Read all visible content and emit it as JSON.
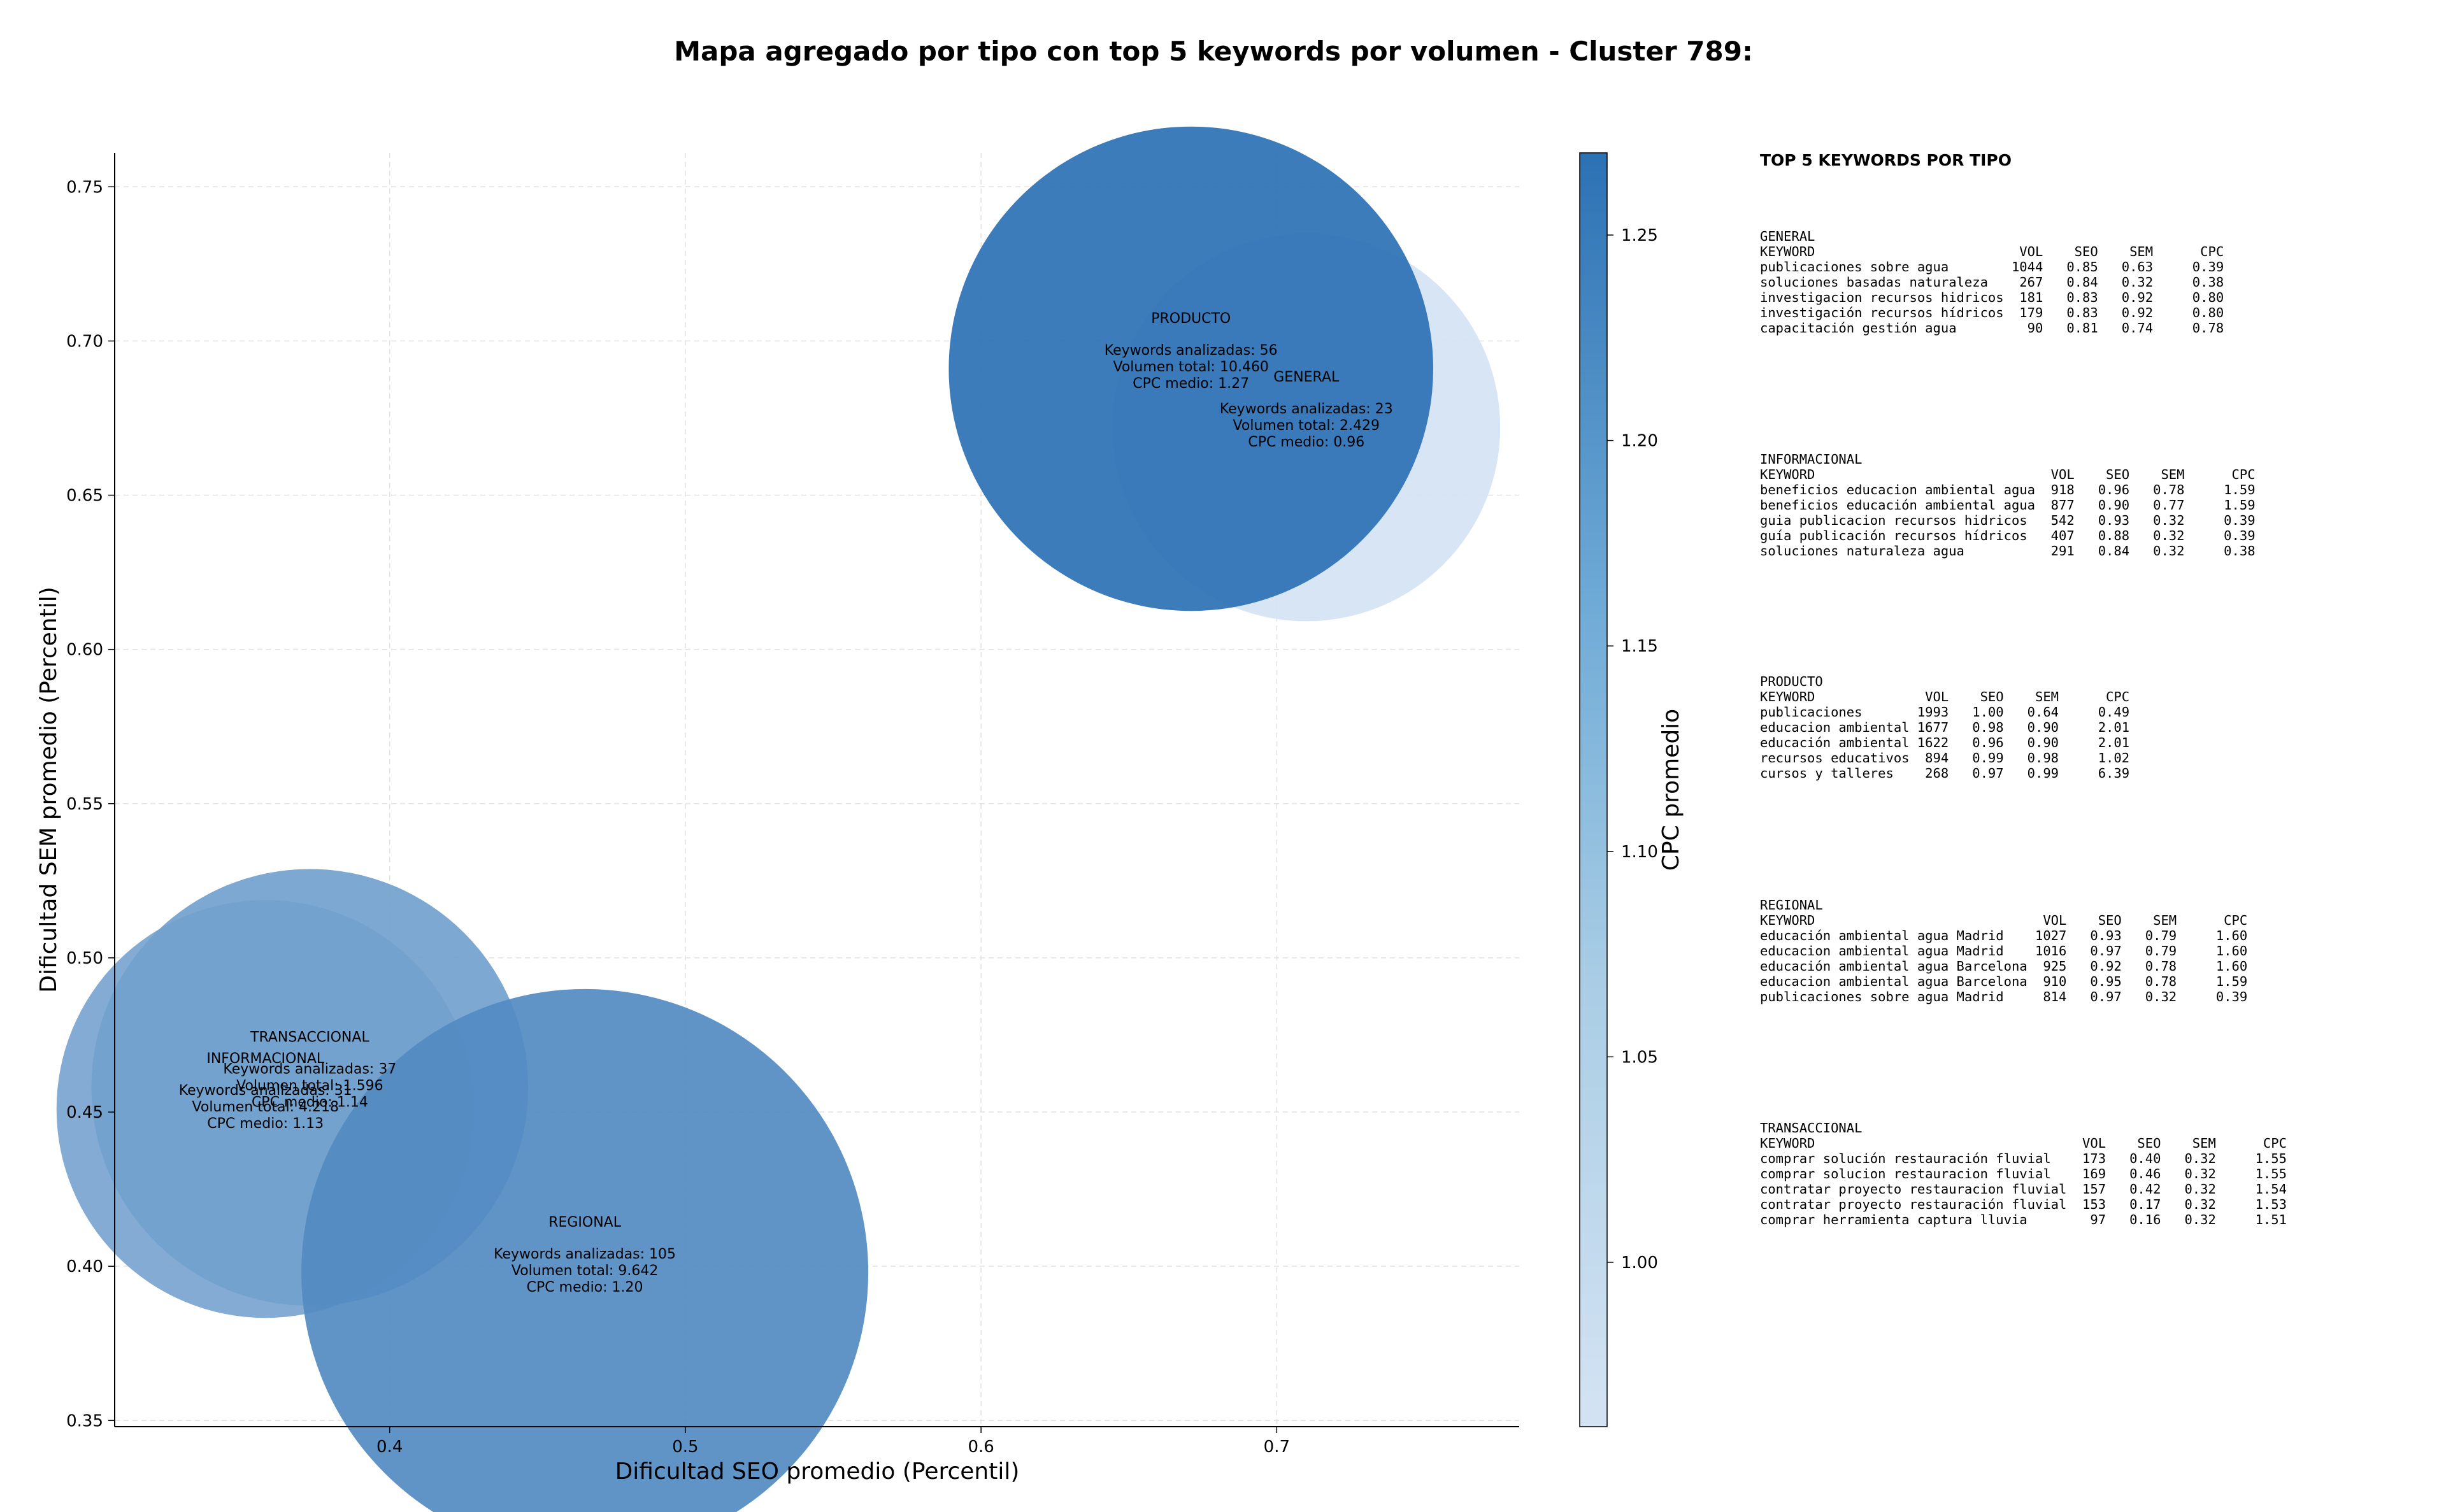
{
  "chart_data": {
    "type": "scatter",
    "title": "Mapa agregado por tipo con top 5 keywords por volumen - Cluster 789:",
    "xlabel": "Dificultad SEO promedio (Percentil)",
    "ylabel": "Dificultad SEM promedio (Percentil)",
    "xlim": [
      0.307,
      0.782
    ],
    "ylim": [
      0.348,
      0.761
    ],
    "xticks": [
      "0.4",
      "0.5",
      "0.6",
      "0.7"
    ],
    "yticks": [
      "0.35",
      "0.40",
      "0.45",
      "0.50",
      "0.55",
      "0.60",
      "0.65",
      "0.70",
      "0.75"
    ],
    "grid": true,
    "colorbar": {
      "label": "CPC promedio",
      "range": [
        0.96,
        1.27
      ],
      "ticks": [
        "1.00",
        "1.05",
        "1.10",
        "1.15",
        "1.20",
        "1.25"
      ],
      "colors": [
        "#d4e3f3",
        "#2c71b4"
      ]
    },
    "points": [
      {
        "label": "GENERAL",
        "x": 0.71,
        "y": 0.672,
        "keywords": 23,
        "volume": 2429,
        "line_keywords": "Keywords analizadas: 23",
        "line_volume": "Volumen total: 2.429",
        "line_cpc": "CPC medio: 0.96",
        "cpc": 0.96
      },
      {
        "label": "PRODUCTO",
        "x": 0.671,
        "y": 0.691,
        "keywords": 56,
        "volume": 10460,
        "line_keywords": "Keywords analizadas: 56",
        "line_volume": "Volumen total: 10.460",
        "line_cpc": "CPC medio: 1.27",
        "cpc": 1.27
      },
      {
        "label": "INFORMACIONAL",
        "x": 0.358,
        "y": 0.451,
        "keywords": 31,
        "volume": 4218,
        "line_keywords": "Keywords analizadas: 31",
        "line_volume": "Volumen total: 4.218",
        "line_cpc": "CPC medio: 1.13",
        "cpc": 1.13
      },
      {
        "label": "TRANSACCIONAL",
        "x": 0.373,
        "y": 0.458,
        "keywords": 37,
        "volume": 1596,
        "line_keywords": "Keywords analizadas: 37",
        "line_volume": "Volumen total: 1.596",
        "line_cpc": "CPC medio: 1.14",
        "cpc": 1.14
      },
      {
        "label": "REGIONAL",
        "x": 0.466,
        "y": 0.398,
        "keywords": 105,
        "volume": 9642,
        "line_keywords": "Keywords analizadas: 105",
        "line_volume": "Volumen total: 9.642",
        "line_cpc": "CPC medio: 1.20",
        "cpc": 1.2
      }
    ],
    "side_panel": {
      "title": "TOP 5 KEYWORDS POR TIPO",
      "groups": [
        {
          "name": "GENERAL",
          "header": "KEYWORD                          VOL    SEO    SEM      CPC",
          "rows": [
            "publicaciones sobre agua        1044   0.85   0.63     0.39",
            "soluciones basadas naturaleza    267   0.84   0.32     0.38",
            "investigacion recursos hidricos  181   0.83   0.92     0.80",
            "investigación recursos hídricos  179   0.83   0.92     0.80",
            "capacitación gestión agua         90   0.81   0.74     0.78"
          ]
        },
        {
          "name": "INFORMACIONAL",
          "header": "KEYWORD                              VOL    SEO    SEM      CPC",
          "rows": [
            "beneficios educacion ambiental agua  918   0.96   0.78     1.59",
            "beneficios educación ambiental agua  877   0.90   0.77     1.59",
            "guia publicacion recursos hidricos   542   0.93   0.32     0.39",
            "guía publicación recursos hídricos   407   0.88   0.32     0.39",
            "soluciones naturaleza agua           291   0.84   0.32     0.38"
          ]
        },
        {
          "name": "PRODUCTO",
          "header": "KEYWORD              VOL    SEO    SEM      CPC",
          "rows": [
            "publicaciones       1993   1.00   0.64     0.49",
            "educacion ambiental 1677   0.98   0.90     2.01",
            "educación ambiental 1622   0.96   0.90     2.01",
            "recursos educativos  894   0.99   0.98     1.02",
            "cursos y talleres    268   0.97   0.99     6.39"
          ]
        },
        {
          "name": "REGIONAL",
          "header": "KEYWORD                             VOL    SEO    SEM      CPC",
          "rows": [
            "educación ambiental agua Madrid    1027   0.93   0.79     1.60",
            "educacion ambiental agua Madrid    1016   0.97   0.79     1.60",
            "educación ambiental agua Barcelona  925   0.92   0.78     1.60",
            "educacion ambiental agua Barcelona  910   0.95   0.78     1.59",
            "publicaciones sobre agua Madrid     814   0.97   0.32     0.39"
          ]
        },
        {
          "name": "TRANSACCIONAL",
          "header": "KEYWORD                                  VOL    SEO    SEM      CPC",
          "rows": [
            "comprar solución restauración fluvial    173   0.40   0.32     1.55",
            "comprar solucion restauracion fluvial    169   0.46   0.32     1.55",
            "contratar proyecto restauracion fluvial  157   0.42   0.32     1.54",
            "contratar proyecto restauración fluvial  153   0.17   0.32     1.53",
            "comprar herramienta captura lluvia        97   0.16   0.32     1.51"
          ]
        }
      ]
    }
  }
}
